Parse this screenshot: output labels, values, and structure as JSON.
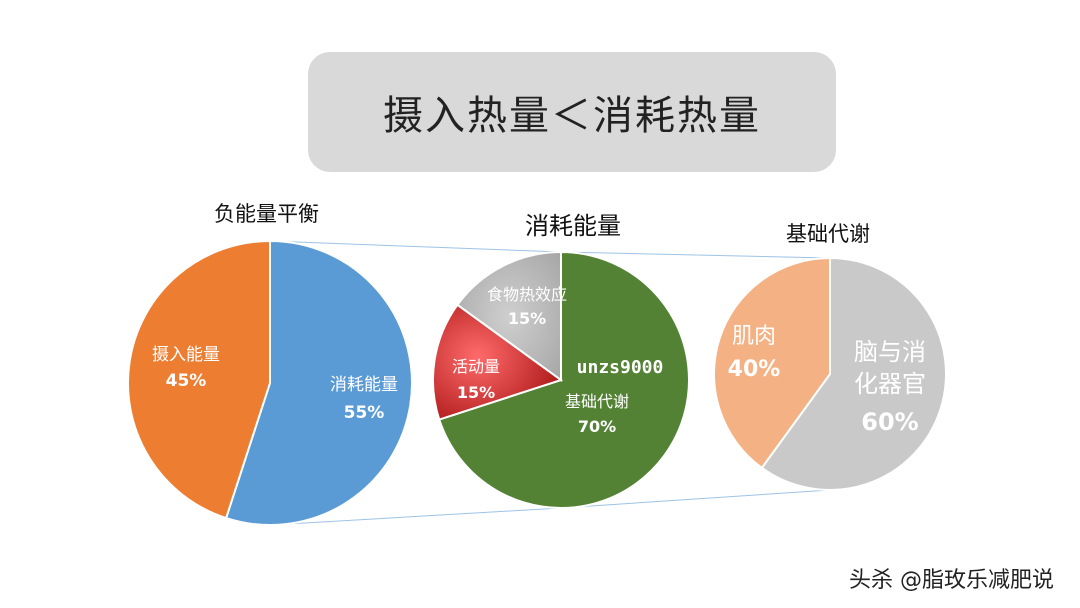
{
  "header": {
    "title": "摄入热量＜消耗热量"
  },
  "watermark": "头杀 @脂玫乐减肥说",
  "colors": {
    "orange": "#ed7d31",
    "blue": "#5b9bd5",
    "green": "#548235",
    "gray": "#bfbfbf",
    "red": "#e03030",
    "peach": "#f4b183",
    "light_gray": "#c9c9c9",
    "connector": "#9dc3e6"
  },
  "chart_data": [
    {
      "type": "pie",
      "title": "负能量平衡",
      "slices": [
        {
          "label": "摄入能量",
          "value": 45,
          "value_label": "45%",
          "color": "#ed7d31"
        },
        {
          "label": "消耗能量",
          "value": 55,
          "value_label": "55%",
          "color": "#5b9bd5"
        }
      ]
    },
    {
      "type": "pie",
      "title": "消耗能量",
      "annotation": "unzs9000",
      "slices": [
        {
          "label": "基础代谢",
          "value": 70,
          "value_label": "70%",
          "color": "#548235"
        },
        {
          "label": "活动量",
          "value": 15,
          "value_label": "15%",
          "color": "#e03030"
        },
        {
          "label": "食物热效应",
          "value": 15,
          "value_label": "15%",
          "color": "#bfbfbf"
        }
      ]
    },
    {
      "type": "pie",
      "title": "基础代谢",
      "slices": [
        {
          "label": "脑与消化器官",
          "value": 60,
          "value_label": "60%",
          "color": "#c9c9c9"
        },
        {
          "label": "肌肉",
          "value": 40,
          "value_label": "40%",
          "color": "#f4b183"
        }
      ]
    }
  ]
}
